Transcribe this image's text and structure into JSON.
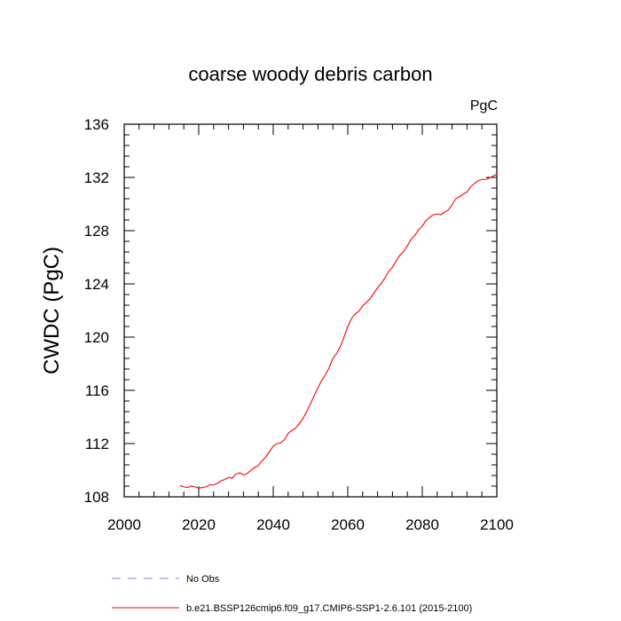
{
  "chart_data": {
    "type": "line",
    "title": "coarse woody debris carbon",
    "units_label": "PgC",
    "xlabel": "",
    "ylabel": "CWDC  (PgC)",
    "xlim": [
      2000,
      2100
    ],
    "ylim": [
      108,
      136
    ],
    "x_ticks": [
      2000,
      2020,
      2040,
      2060,
      2080,
      2100
    ],
    "x_tick_labels": [
      "2000",
      "2020",
      "2040",
      "2060",
      "2080",
      "2100"
    ],
    "y_ticks": [
      108,
      112,
      116,
      120,
      124,
      128,
      132,
      136
    ],
    "y_tick_labels": [
      "108",
      "112",
      "116",
      "120",
      "124",
      "128",
      "132",
      "136"
    ],
    "grid": false,
    "legend_position": "below",
    "series": [
      {
        "name": "No Obs",
        "color": "#8080ff",
        "style": "dashed",
        "x": [],
        "y": []
      },
      {
        "name": "b.e21.BSSP126cmip6.f09_g17.CMIP6-SSP1-2.6.101 (2015-2100)",
        "color": "#ff0000",
        "style": "solid",
        "x": [
          2015,
          2016,
          2017,
          2018,
          2019,
          2020,
          2021,
          2022,
          2023,
          2024,
          2025,
          2026,
          2027,
          2028,
          2029,
          2030,
          2031,
          2032,
          2033,
          2034,
          2035,
          2036,
          2037,
          2038,
          2039,
          2040,
          2041,
          2042,
          2043,
          2044,
          2045,
          2046,
          2047,
          2048,
          2049,
          2050,
          2051,
          2052,
          2053,
          2054,
          2055,
          2056,
          2057,
          2058,
          2059,
          2060,
          2061,
          2062,
          2063,
          2064,
          2065,
          2066,
          2067,
          2068,
          2069,
          2070,
          2071,
          2072,
          2073,
          2074,
          2075,
          2076,
          2077,
          2078,
          2079,
          2080,
          2081,
          2082,
          2083,
          2084,
          2085,
          2086,
          2087,
          2088,
          2089,
          2090,
          2091,
          2092,
          2093,
          2094,
          2095,
          2096,
          2097,
          2098,
          2099,
          2100
        ],
        "y": [
          108.85,
          108.75,
          108.7,
          108.8,
          108.75,
          108.65,
          108.7,
          108.75,
          108.9,
          108.9,
          109.0,
          109.2,
          109.3,
          109.45,
          109.4,
          109.7,
          109.8,
          109.65,
          109.75,
          110.0,
          110.2,
          110.35,
          110.7,
          111.0,
          111.4,
          111.8,
          112.0,
          112.05,
          112.3,
          112.75,
          113.0,
          113.15,
          113.5,
          113.9,
          114.4,
          115.0,
          115.6,
          116.2,
          116.75,
          117.15,
          117.7,
          118.4,
          118.75,
          119.3,
          120.0,
          120.8,
          121.4,
          121.75,
          121.95,
          122.35,
          122.6,
          122.9,
          123.3,
          123.7,
          124.05,
          124.45,
          124.95,
          125.25,
          125.75,
          126.15,
          126.45,
          126.85,
          127.35,
          127.65,
          128.05,
          128.35,
          128.75,
          129.0,
          129.2,
          129.25,
          129.2,
          129.4,
          129.55,
          129.95,
          130.4,
          130.55,
          130.75,
          130.9,
          131.3,
          131.55,
          131.75,
          131.85,
          131.85,
          131.95,
          132.1,
          132.25
        ]
      }
    ]
  }
}
